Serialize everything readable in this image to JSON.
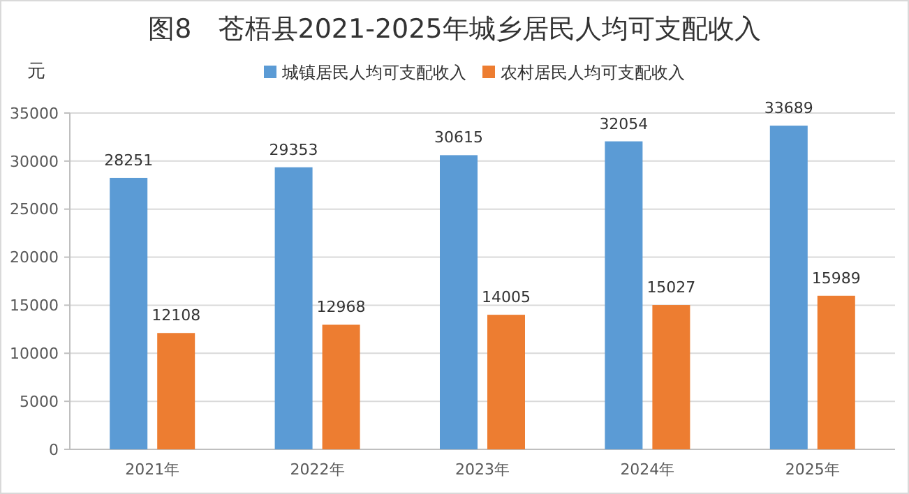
{
  "chart_data": {
    "type": "bar",
    "title": "图8　苍梧县2021-2025年城乡居民人均可支配收入",
    "ylabel": "元",
    "categories": [
      "2021年",
      "2022年",
      "2023年",
      "2024年",
      "2025年"
    ],
    "series": [
      {
        "name": "城镇居民人均可支配收入",
        "color": "#5b9bd5",
        "values": [
          28251,
          29353,
          30615,
          32054,
          33689
        ]
      },
      {
        "name": "农村居民人均可支配收入",
        "color": "#ed7d31",
        "values": [
          12108,
          12968,
          14005,
          15027,
          15989
        ]
      }
    ],
    "ylim": [
      0,
      35000
    ],
    "yticks": [
      0,
      5000,
      10000,
      15000,
      20000,
      25000,
      30000,
      35000
    ],
    "grid": "y",
    "legend": "top",
    "data_labels": true
  }
}
